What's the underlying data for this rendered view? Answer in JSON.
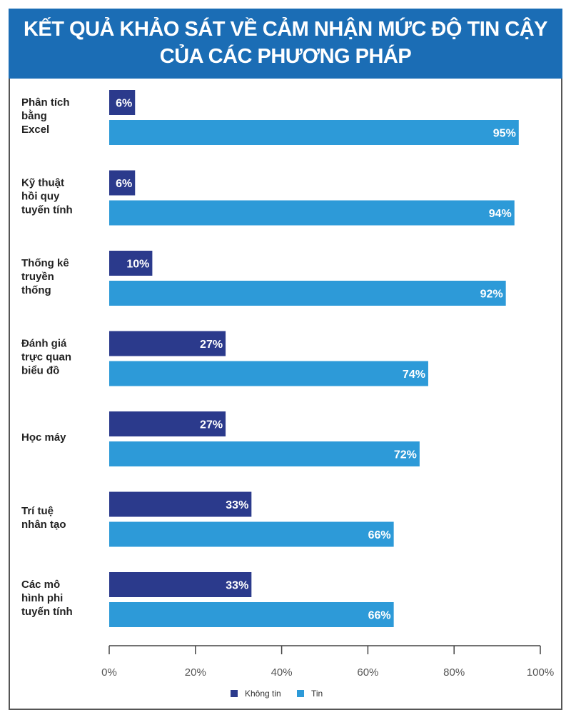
{
  "chart_data": {
    "type": "bar",
    "orientation": "horizontal",
    "title": "KẾT QUẢ KHẢO SÁT VỀ CẢM NHẬN MỨC ĐỘ TIN CẬY CỦA CÁC PHƯƠNG PHÁP",
    "title_lines": [
      "KẾT QUẢ KHẢO SÁT VỀ CẢM NHẬN MỨC ĐỘ TIN CẬY",
      "CỦA CÁC PHƯƠNG PHÁP"
    ],
    "categories": [
      [
        "Phân tích",
        "bằng",
        "Excel"
      ],
      [
        "Kỹ thuật",
        "hồi quy",
        "tuyến tính"
      ],
      [
        "Thống kê",
        "truyền",
        "thống"
      ],
      [
        "Đánh giá",
        "trực quan",
        "biểu đồ"
      ],
      [
        "Học máy"
      ],
      [
        "Trí tuệ",
        "nhân tạo"
      ],
      [
        "Các mô",
        "hình phi",
        "tuyến tính"
      ]
    ],
    "series": [
      {
        "name": "Không tin",
        "color": "#2b3a8c",
        "values": [
          6,
          6,
          10,
          27,
          27,
          33,
          33
        ]
      },
      {
        "name": "Tin",
        "color": "#2d9ad8",
        "values": [
          95,
          94,
          92,
          74,
          72,
          66,
          66
        ]
      }
    ],
    "xlim": [
      0,
      100
    ],
    "xticks": [
      "0%",
      "20%",
      "40%",
      "60%",
      "80%",
      "100%"
    ],
    "grid": false,
    "legend_placement": "bottom",
    "title_color": "#1b6db5"
  }
}
